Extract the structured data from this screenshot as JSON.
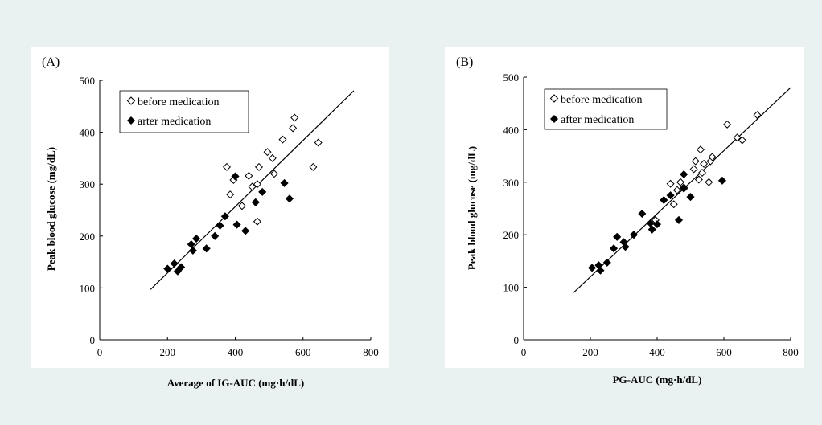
{
  "chart_data": [
    {
      "type": "scatter",
      "panel_label": "(A)",
      "xlabel": "Average of IG-AUC (mg·h/dL)",
      "ylabel": "Peak blood glucose (mg/dL)",
      "xlim": [
        0,
        800
      ],
      "ylim": [
        0,
        500
      ],
      "xticks": [
        0,
        200,
        400,
        600,
        800
      ],
      "yticks": [
        0,
        100,
        200,
        300,
        400,
        500
      ],
      "grid": false,
      "legend_position": "top-left",
      "series": [
        {
          "name": "before medication",
          "marker": "open-diamond",
          "color": "#000000",
          "points": [
            [
              375,
              333
            ],
            [
              385,
              280
            ],
            [
              395,
              308
            ],
            [
              420,
              258
            ],
            [
              440,
              316
            ],
            [
              450,
              295
            ],
            [
              465,
              300
            ],
            [
              465,
              228
            ],
            [
              470,
              333
            ],
            [
              495,
              362
            ],
            [
              510,
              350
            ],
            [
              515,
              320
            ],
            [
              540,
              386
            ],
            [
              570,
              408
            ],
            [
              575,
              428
            ],
            [
              630,
              333
            ],
            [
              645,
              380
            ]
          ]
        },
        {
          "name": "arter medication",
          "marker": "filled-diamond",
          "color": "#000000",
          "points": [
            [
              200,
              137
            ],
            [
              220,
              147
            ],
            [
              230,
              132
            ],
            [
              240,
              140
            ],
            [
              270,
              184
            ],
            [
              275,
              172
            ],
            [
              285,
              195
            ],
            [
              315,
              176
            ],
            [
              340,
              200
            ],
            [
              355,
              220
            ],
            [
              370,
              238
            ],
            [
              400,
              315
            ],
            [
              405,
              222
            ],
            [
              430,
              210
            ],
            [
              460,
              265
            ],
            [
              480,
              285
            ],
            [
              545,
              302
            ],
            [
              560,
              272
            ]
          ]
        }
      ],
      "fit_line": {
        "x": [
          150,
          750
        ],
        "y": [
          97,
          480
        ]
      }
    },
    {
      "type": "scatter",
      "panel_label": "(B)",
      "xlabel": "PG-AUC (mg·h/dL)",
      "ylabel": "Peak blood glucose (mg/dL)",
      "xlim": [
        0,
        800
      ],
      "ylim": [
        0,
        500
      ],
      "xticks": [
        0,
        200,
        400,
        600,
        800
      ],
      "yticks": [
        0,
        100,
        200,
        300,
        400,
        500
      ],
      "grid": false,
      "legend_position": "top-left",
      "series": [
        {
          "name": "before medication",
          "marker": "open-diamond",
          "color": "#000000",
          "points": [
            [
              395,
              228
            ],
            [
              440,
              297
            ],
            [
              450,
              258
            ],
            [
              460,
              285
            ],
            [
              470,
              300
            ],
            [
              480,
              290
            ],
            [
              510,
              325
            ],
            [
              515,
              340
            ],
            [
              525,
              305
            ],
            [
              530,
              362
            ],
            [
              535,
              318
            ],
            [
              540,
              335
            ],
            [
              555,
              300
            ],
            [
              560,
              340
            ],
            [
              565,
              348
            ],
            [
              610,
              410
            ],
            [
              640,
              385
            ],
            [
              655,
              380
            ],
            [
              700,
              428
            ]
          ]
        },
        {
          "name": "after medication",
          "marker": "filled-diamond",
          "color": "#000000",
          "points": [
            [
              205,
              137
            ],
            [
              225,
              142
            ],
            [
              230,
              132
            ],
            [
              250,
              147
            ],
            [
              270,
              174
            ],
            [
              280,
              196
            ],
            [
              300,
              186
            ],
            [
              305,
              177
            ],
            [
              330,
              200
            ],
            [
              355,
              240
            ],
            [
              380,
              222
            ],
            [
              385,
              210
            ],
            [
              400,
              220
            ],
            [
              420,
              266
            ],
            [
              440,
              275
            ],
            [
              465,
              228
            ],
            [
              480,
              315
            ],
            [
              480,
              288
            ],
            [
              500,
              272
            ],
            [
              595,
              303
            ]
          ]
        }
      ],
      "fit_line": {
        "x": [
          150,
          800
        ],
        "y": [
          90,
          480
        ]
      }
    }
  ]
}
